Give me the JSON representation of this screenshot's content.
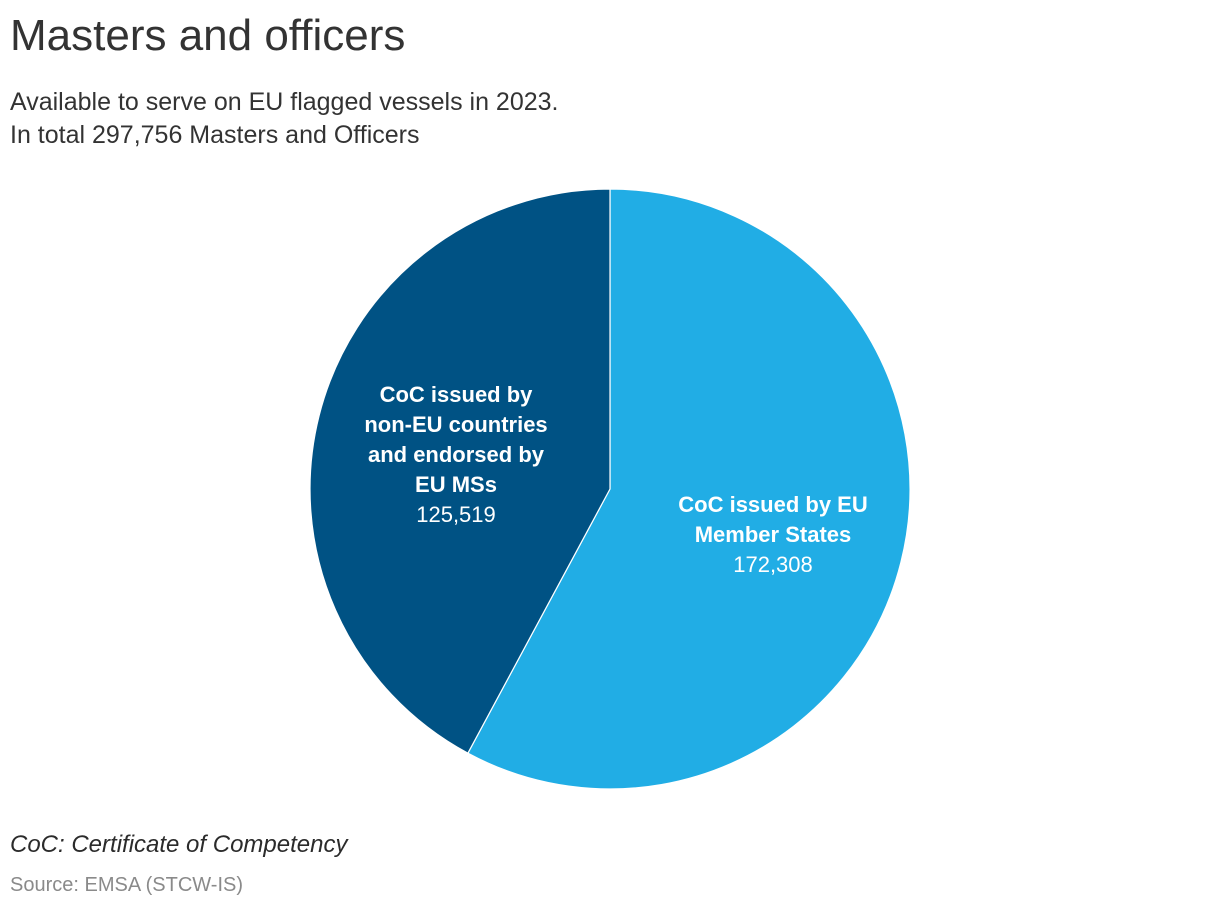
{
  "chart_data": {
    "type": "pie",
    "title": "Masters and officers",
    "subtitle_lines": [
      "Available to serve on EU flagged vessels in 2023.",
      "In total 297,756 Masters and Officers"
    ],
    "slices": [
      {
        "name": "CoC issued by EU Member States",
        "label_lines": [
          "CoC issued by EU",
          "Member States"
        ],
        "value": 172308,
        "value_label": "172,308",
        "color": "#21ade5"
      },
      {
        "name": "CoC issued by non-EU countries and endorsed by EU MSs",
        "label_lines": [
          "CoC issued by",
          "non-EU countries",
          "and endorsed by",
          "EU MSs"
        ],
        "value": 125519,
        "value_label": "125,519",
        "color": "#005284"
      }
    ],
    "note": "CoC: Certificate of Competency",
    "source": "Source: EMSA (STCW-IS)"
  }
}
